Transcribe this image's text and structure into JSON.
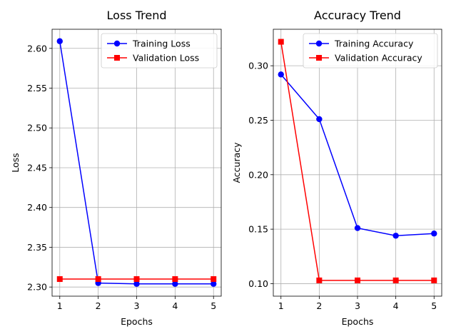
{
  "chart_data": [
    {
      "type": "line",
      "title": "Loss Trend",
      "xlabel": "Epochs",
      "ylabel": "Loss",
      "x": [
        1,
        2,
        3,
        4,
        5
      ],
      "xticks": [
        "1",
        "2",
        "3",
        "4",
        "5"
      ],
      "yticks": [
        "2.30",
        "2.35",
        "2.40",
        "2.45",
        "2.50",
        "2.55",
        "2.60"
      ],
      "ylim": [
        2.2885,
        2.624
      ],
      "xlim": [
        0.8,
        5.2
      ],
      "grid": true,
      "legend": "upper right",
      "series": [
        {
          "name": "Training Loss",
          "values": [
            2.609,
            2.305,
            2.304,
            2.304,
            2.304
          ],
          "color": "#0000ff",
          "marker": "circle"
        },
        {
          "name": "Validation Loss",
          "values": [
            2.31,
            2.31,
            2.31,
            2.31,
            2.31
          ],
          "color": "#ff0000",
          "marker": "square"
        }
      ]
    },
    {
      "type": "line",
      "title": "Accuracy Trend",
      "xlabel": "Epochs",
      "ylabel": "Accuracy",
      "x": [
        1,
        2,
        3,
        4,
        5
      ],
      "xticks": [
        "1",
        "2",
        "3",
        "4",
        "5"
      ],
      "yticks": [
        "0.10",
        "0.15",
        "0.20",
        "0.25",
        "0.30"
      ],
      "ylim": [
        0.0885,
        0.3335
      ],
      "xlim": [
        0.8,
        5.2
      ],
      "grid": true,
      "legend": "upper right",
      "series": [
        {
          "name": "Training Accuracy",
          "values": [
            0.292,
            0.251,
            0.151,
            0.144,
            0.146
          ],
          "color": "#0000ff",
          "marker": "circle"
        },
        {
          "name": "Validation Accuracy",
          "values": [
            0.322,
            0.103,
            0.103,
            0.103,
            0.103
          ],
          "color": "#ff0000",
          "marker": "square"
        }
      ]
    }
  ]
}
